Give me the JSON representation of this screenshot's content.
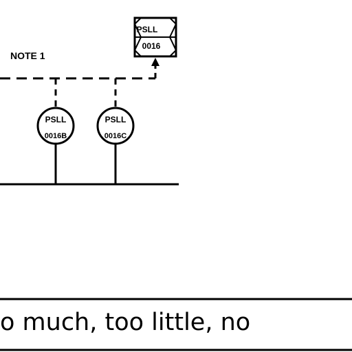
{
  "diagram": {
    "note_label": "NOTE 1",
    "plc_tag": {
      "function": "PSLL",
      "number": "0016"
    },
    "instruments": [
      {
        "function": "PSLL",
        "number": "0016B"
      },
      {
        "function": "PSLL",
        "number": "0016C"
      }
    ]
  },
  "caption": {
    "text": "o much, too little, no"
  },
  "colors": {
    "line": "#000000",
    "background": "#ffffff"
  }
}
